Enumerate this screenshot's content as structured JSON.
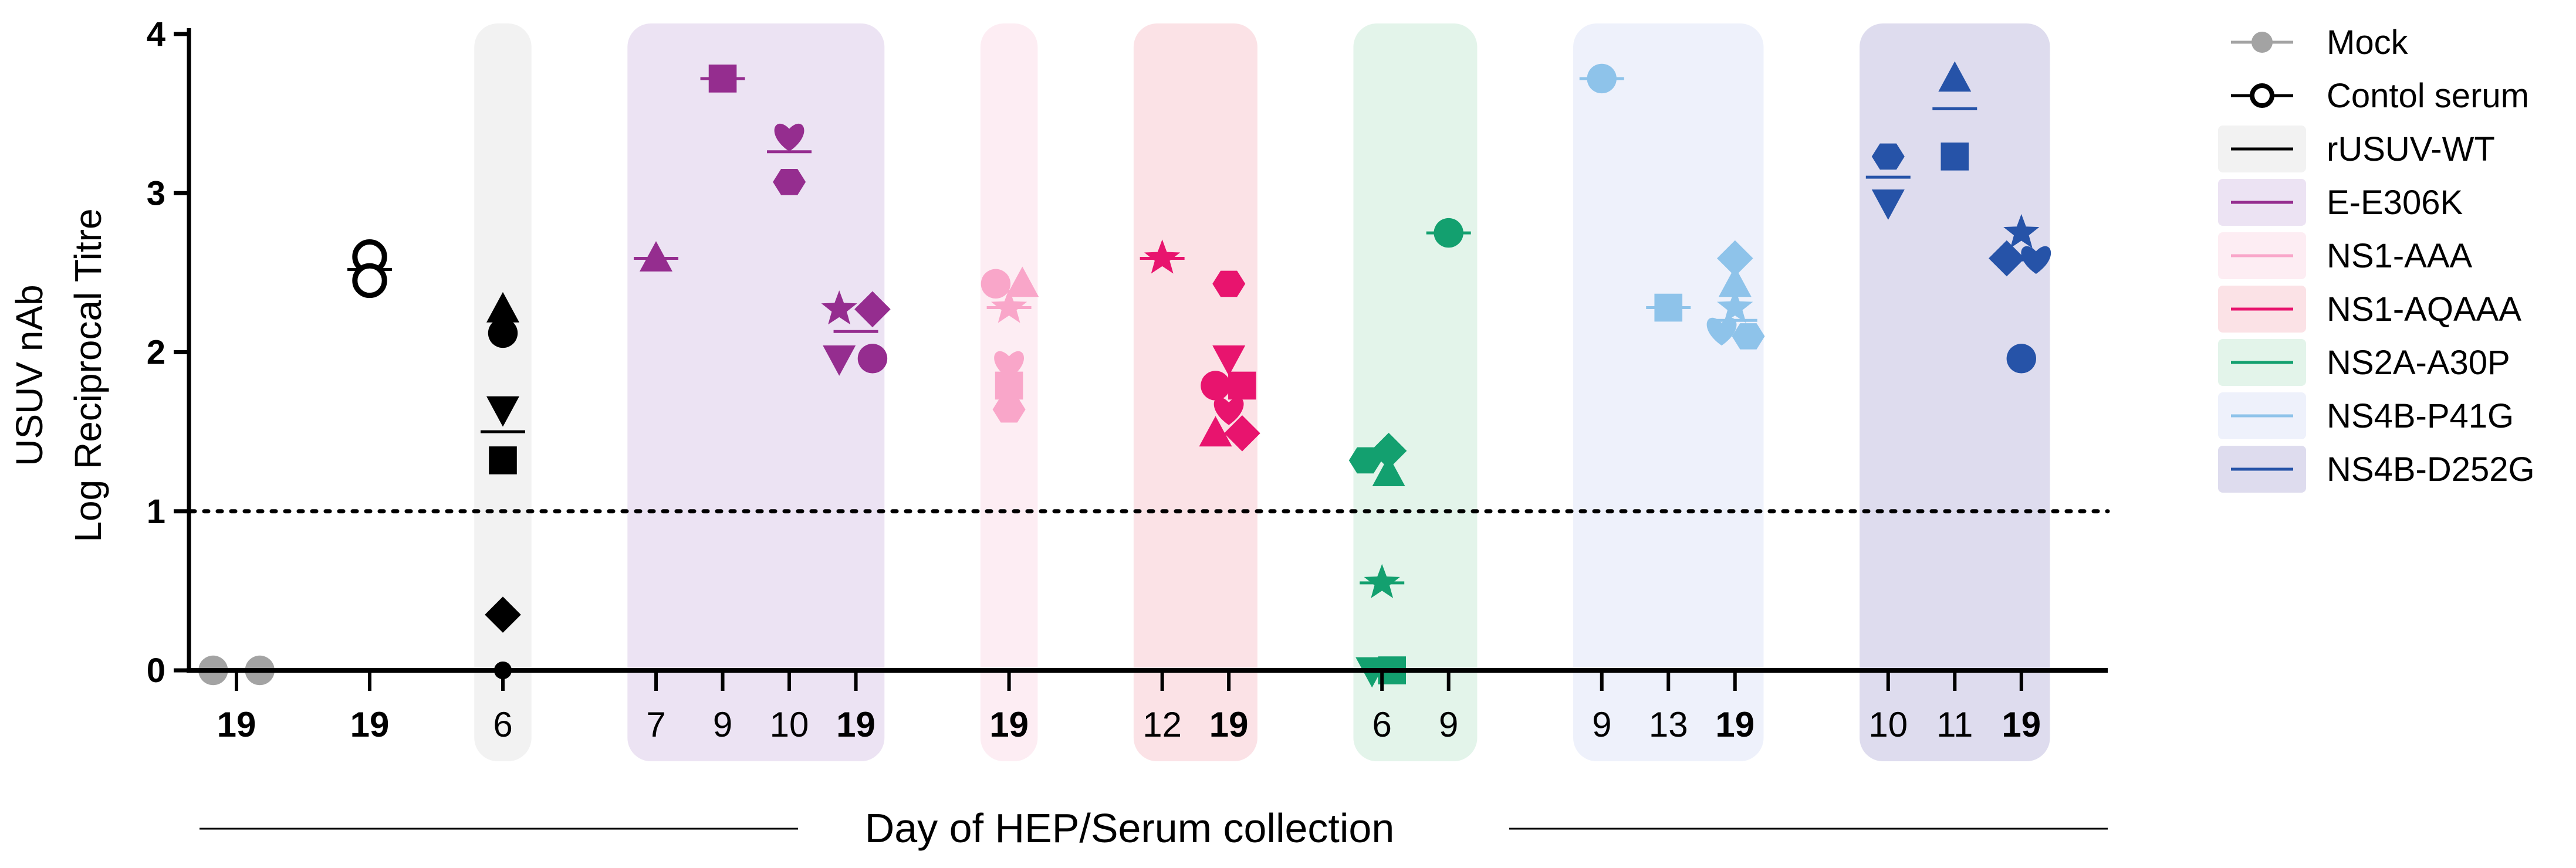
{
  "chart_data": {
    "type": "scatter",
    "ylabel_lines": [
      "USUV nAb",
      "Log Reciprocal Titre"
    ],
    "xlabel": "Day of HEP/Serum collection",
    "ylim": [
      0,
      4
    ],
    "yticks": [
      "0",
      "1",
      "2",
      "3",
      "4"
    ],
    "threshold": 1,
    "groups": [
      {
        "name": "Mock",
        "color": "#a3a3a3",
        "background": null,
        "columns": [
          {
            "label": "19",
            "bold": true,
            "points": [
              {
                "marker": "circle",
                "y": 0.0,
                "dx": -0.35
              },
              {
                "marker": "circle",
                "y": 0.0,
                "dx": 0.35
              }
            ]
          }
        ]
      },
      {
        "name": "Contol serum",
        "color": "#000000",
        "background": null,
        "open": true,
        "columns": [
          {
            "label": "19",
            "bold": true,
            "mean": 2.52,
            "points": [
              {
                "marker": "circle",
                "y": 2.6
              },
              {
                "marker": "circle",
                "y": 2.45
              }
            ]
          }
        ]
      },
      {
        "name": "rUSUV-WT",
        "color": "#000000",
        "background": "#f2f2f2",
        "columns": [
          {
            "label": "6",
            "bold": false,
            "mean": 1.5,
            "points": [
              {
                "marker": "triangle",
                "y": 2.27
              },
              {
                "marker": "circle",
                "y": 2.12
              },
              {
                "marker": "triangle-down",
                "y": 1.64
              },
              {
                "marker": "square",
                "y": 1.32
              },
              {
                "marker": "diamond",
                "y": 0.35
              },
              {
                "marker": "circle",
                "y": 0.0,
                "size": 0.6
              }
            ]
          }
        ]
      },
      {
        "name": "E-E306K",
        "color": "#952d8f",
        "background": "#ece3f3",
        "columns": [
          {
            "label": "7",
            "bold": false,
            "mean": 2.59,
            "points": [
              {
                "marker": "triangle",
                "y": 2.59
              }
            ]
          },
          {
            "label": "9",
            "bold": false,
            "mean": 3.72,
            "points": [
              {
                "marker": "square",
                "y": 3.72
              }
            ]
          },
          {
            "label": "10",
            "bold": false,
            "mean": 3.26,
            "points": [
              {
                "marker": "heart",
                "y": 3.36
              },
              {
                "marker": "hexagon",
                "y": 3.07
              }
            ]
          },
          {
            "label": "19",
            "bold": true,
            "mean": 2.13,
            "points": [
              {
                "marker": "star",
                "y": 2.27,
                "dx": -0.25
              },
              {
                "marker": "diamond",
                "y": 2.27,
                "dx": 0.25
              },
              {
                "marker": "triangle-down",
                "y": 1.96,
                "dx": -0.25
              },
              {
                "marker": "circle",
                "y": 1.96,
                "dx": 0.25
              }
            ]
          }
        ]
      },
      {
        "name": "NS1-AAA",
        "color": "#f9a6c9",
        "background": "#fdedf3",
        "columns": [
          {
            "label": "19",
            "bold": true,
            "mean": 2.28,
            "points": [
              {
                "marker": "circle",
                "y": 2.43,
                "dx": -0.2
              },
              {
                "marker": "triangle",
                "y": 2.43,
                "dx": 0.2
              },
              {
                "marker": "star",
                "y": 2.28
              },
              {
                "marker": "heart",
                "y": 1.93
              },
              {
                "marker": "square",
                "y": 1.79
              },
              {
                "marker": "hexagon",
                "y": 1.64
              }
            ]
          }
        ]
      },
      {
        "name": "NS1-AQAAA",
        "color": "#e8146e",
        "background": "#fbe2e6",
        "columns": [
          {
            "label": "12",
            "bold": false,
            "mean": 2.59,
            "points": [
              {
                "marker": "star",
                "y": 2.59
              }
            ]
          },
          {
            "label": "19",
            "bold": true,
            "mean": 1.78,
            "points": [
              {
                "marker": "hexagon",
                "y": 2.43
              },
              {
                "marker": "triangle-down",
                "y": 1.96
              },
              {
                "marker": "circle",
                "y": 1.79,
                "dx": -0.2
              },
              {
                "marker": "square",
                "y": 1.79,
                "dx": 0.2
              },
              {
                "marker": "heart",
                "y": 1.64
              },
              {
                "marker": "triangle",
                "y": 1.49,
                "dx": -0.2
              },
              {
                "marker": "diamond",
                "y": 1.49,
                "dx": 0.2
              }
            ]
          }
        ]
      },
      {
        "name": "NS2A-A30P",
        "color": "#13a06f",
        "background": "#e3f4ea",
        "columns": [
          {
            "label": "6",
            "bold": false,
            "mean": 0.55,
            "points": [
              {
                "marker": "hexagon",
                "y": 1.32,
                "dx": -0.25
              },
              {
                "marker": "diamond",
                "y": 1.38,
                "dx": 0.1
              },
              {
                "marker": "triangle",
                "y": 1.24,
                "dx": 0.1
              },
              {
                "marker": "star",
                "y": 0.55
              },
              {
                "marker": "triangle-down",
                "y": 0.0,
                "dx": -0.15
              },
              {
                "marker": "square",
                "y": 0.0,
                "dx": 0.15
              }
            ]
          },
          {
            "label": "9",
            "bold": false,
            "mean": 2.75,
            "points": [
              {
                "marker": "circle",
                "y": 2.75
              }
            ]
          }
        ]
      },
      {
        "name": "NS4B-P41G",
        "color": "#8ec3ea",
        "background": "#eef1fb",
        "columns": [
          {
            "label": "9",
            "bold": false,
            "mean": 3.72,
            "points": [
              {
                "marker": "circle",
                "y": 3.72
              }
            ]
          },
          {
            "label": "13",
            "bold": false,
            "mean": 2.28,
            "points": [
              {
                "marker": "square",
                "y": 2.28
              }
            ]
          },
          {
            "label": "19",
            "bold": true,
            "mean": 2.2,
            "points": [
              {
                "marker": "diamond",
                "y": 2.59
              },
              {
                "marker": "triangle",
                "y": 2.43
              },
              {
                "marker": "star",
                "y": 2.28
              },
              {
                "marker": "heart",
                "y": 2.14,
                "dx": -0.2
              },
              {
                "marker": "hexagon",
                "y": 2.1,
                "dx": 0.2
              }
            ]
          }
        ]
      },
      {
        "name": "NS4B-D252G",
        "color": "#2653a8",
        "background": "#dedcee",
        "columns": [
          {
            "label": "10",
            "bold": false,
            "mean": 3.1,
            "points": [
              {
                "marker": "hexagon",
                "y": 3.23
              },
              {
                "marker": "triangle-down",
                "y": 2.94
              }
            ]
          },
          {
            "label": "11",
            "bold": false,
            "mean": 3.53,
            "points": [
              {
                "marker": "triangle",
                "y": 3.72
              },
              {
                "marker": "square",
                "y": 3.23
              }
            ]
          },
          {
            "label": "19",
            "bold": true,
            "mean": 2.58,
            "points": [
              {
                "marker": "star",
                "y": 2.75
              },
              {
                "marker": "diamond",
                "y": 2.59,
                "dx": -0.22
              },
              {
                "marker": "heart",
                "y": 2.59,
                "dx": 0.22
              },
              {
                "marker": "circle",
                "y": 1.96
              }
            ]
          }
        ]
      }
    ],
    "legend": {
      "position": "right",
      "entries": [
        {
          "label": "Mock",
          "color": "#a3a3a3",
          "style": "line-dot",
          "fill": null
        },
        {
          "label": "Contol serum",
          "color": "#000000",
          "style": "line-open-dot",
          "fill": null
        },
        {
          "label": "rUSUV-WT",
          "color": "#000000",
          "style": "swatch",
          "fill": "#f2f2f2"
        },
        {
          "label": "E-E306K",
          "color": "#952d8f",
          "style": "swatch",
          "fill": "#ece3f3"
        },
        {
          "label": "NS1-AAA",
          "color": "#f9a6c9",
          "style": "swatch",
          "fill": "#fdedf3"
        },
        {
          "label": "NS1-AQAAA",
          "color": "#e8146e",
          "style": "swatch",
          "fill": "#fbe2e6"
        },
        {
          "label": "NS2A-A30P",
          "color": "#13a06f",
          "style": "swatch",
          "fill": "#e3f4ea"
        },
        {
          "label": "NS4B-P41G",
          "color": "#8ec3ea",
          "style": "swatch",
          "fill": "#eef1fb"
        },
        {
          "label": "NS4B-D252G",
          "color": "#2653a8",
          "style": "swatch",
          "fill": "#dedcee"
        }
      ]
    }
  }
}
